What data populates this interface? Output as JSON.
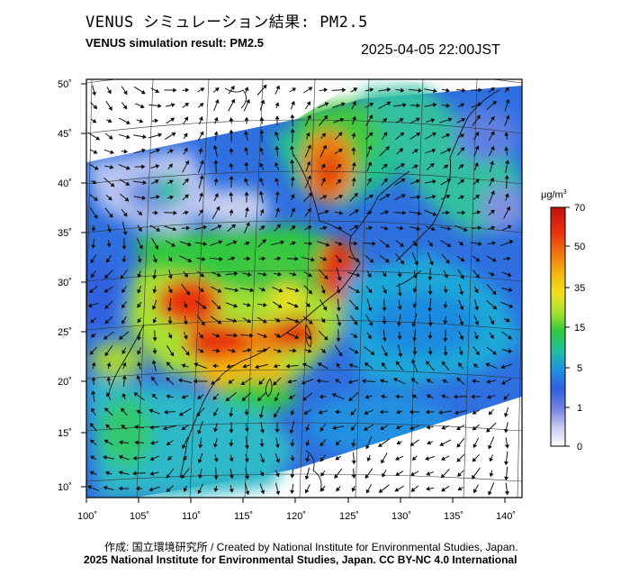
{
  "title_ja": "VENUS シミュレーション結果: PM2.5",
  "title_en": "VENUS simulation result: PM2.5",
  "timestamp": "2025-04-05 22:00JST",
  "colorbar": {
    "unit": "μg/m³",
    "ticks": [
      "70",
      "50",
      "35",
      "15",
      "5",
      "1",
      "0"
    ],
    "colors": [
      "#c01010",
      "#e83010",
      "#f07a10",
      "#f4b810",
      "#f0e020",
      "#a8e030",
      "#30c840",
      "#20c0a0",
      "#2090e0",
      "#3060e0",
      "#7080e0",
      "#c8c8f0",
      "#ffffff"
    ]
  },
  "axes": {
    "lon_labels": [
      "100˚",
      "105˚",
      "110˚",
      "115˚",
      "120˚",
      "125˚",
      "130˚",
      "135˚",
      "140˚"
    ],
    "lat_labels": [
      "50˚",
      "45˚",
      "40˚",
      "35˚",
      "30˚",
      "25˚",
      "20˚",
      "15˚",
      "10˚"
    ]
  },
  "footer": {
    "credit": "作成: 国立環境研究所 / Created by National Institute for Environmental Studies, Japan.",
    "license": "2025 National Institute for Environmental Studies, Japan. CC BY-NC 4.0 International"
  }
}
